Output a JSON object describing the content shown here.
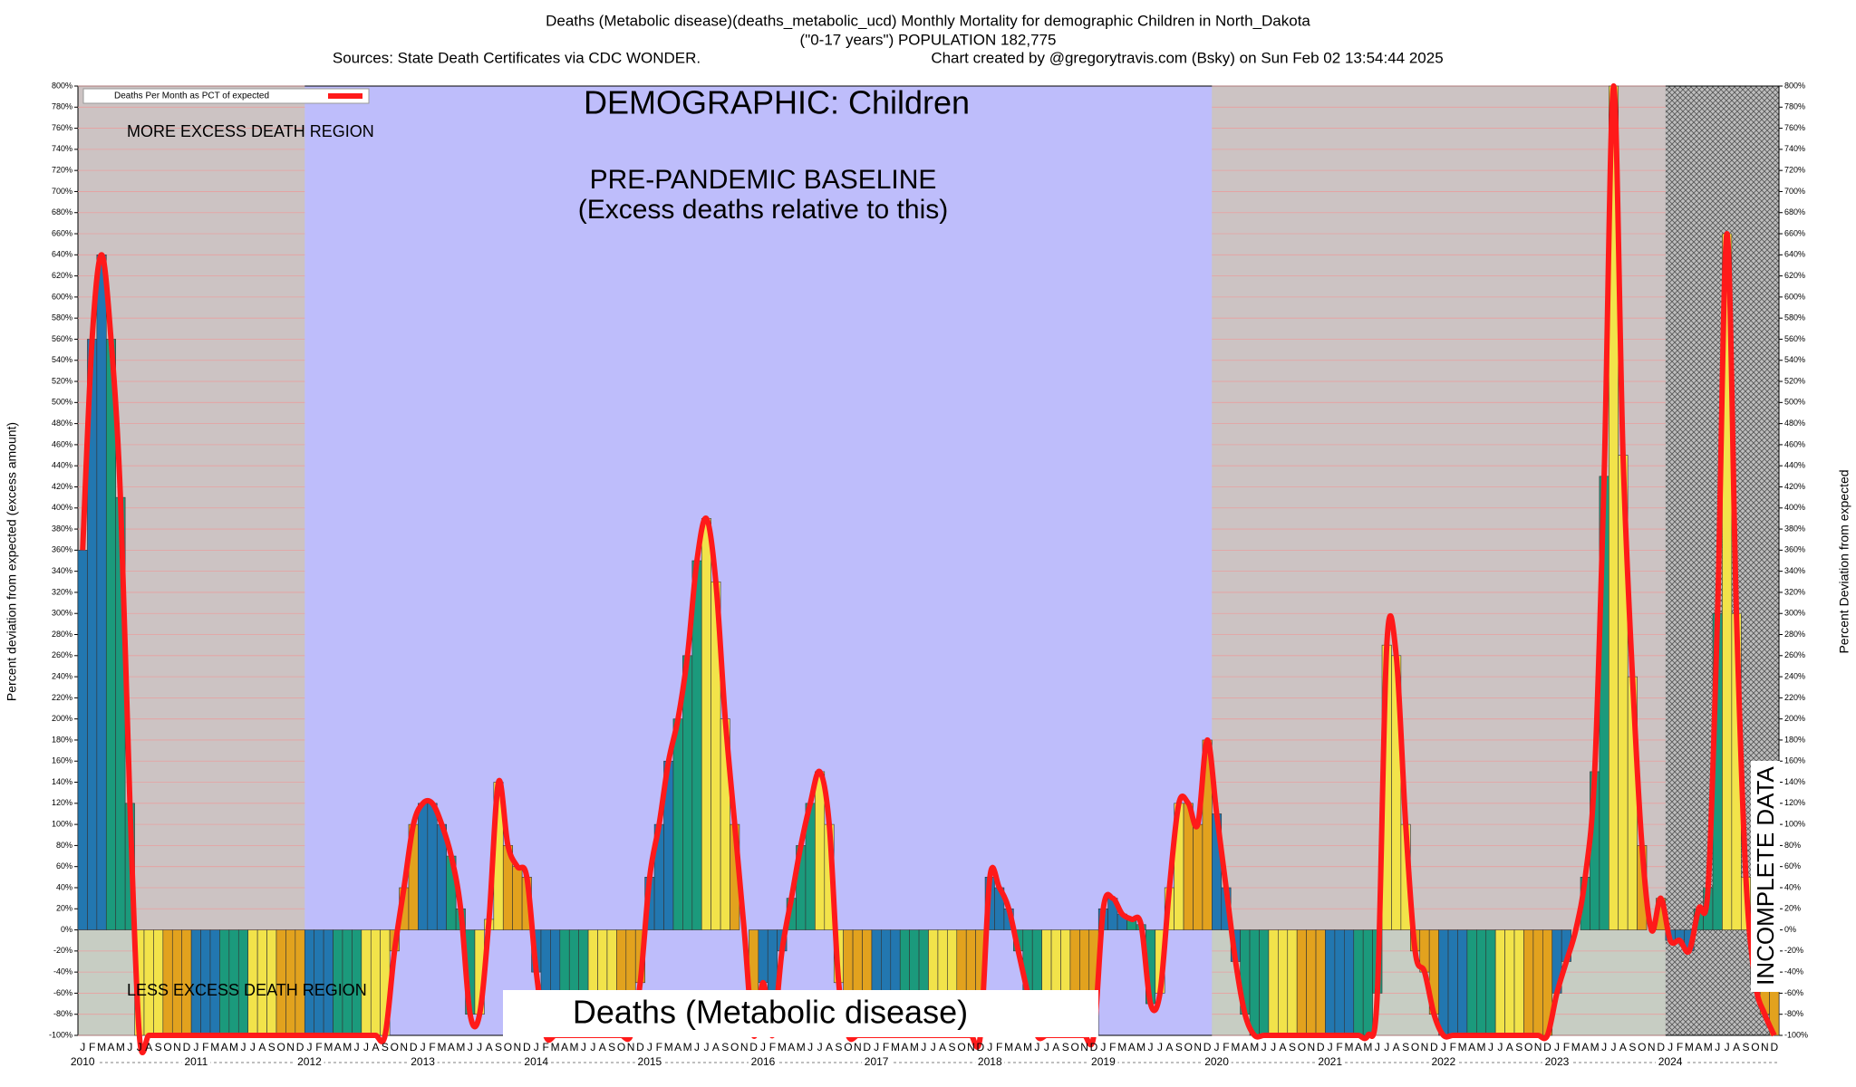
{
  "chart_data": {
    "type": "bar",
    "title": "Deaths (Metabolic disease)(deaths_metabolic_ucd) Monthly Mortality for demographic Children in North_Dakota",
    "subtitle": "(\"0-17 years\") POPULATION 182,775",
    "source": "Sources: State Death Certificates via CDC WONDER.",
    "credit": "Chart created by @gregorytravis.com (Bsky) on Sun Feb 02 13:54:44 2025",
    "annotations": {
      "demographic": "DEMOGRAPHIC: Children",
      "baseline": "PRE-PANDEMIC BASELINE",
      "baseline_note": "(Excess deaths relative to this)",
      "more": "MORE EXCESS DEATH REGION",
      "less": "LESS EXCESS DEATH REGION",
      "cause": "Deaths (Metabolic disease)",
      "incomplete": "INCOMPLETE DATA"
    },
    "ylabel": "Percent deviation from expected (excess amount)",
    "y2label": "Percent Deviation from expected",
    "months": [
      "J",
      "F",
      "M",
      "A",
      "M",
      "J",
      "J",
      "A",
      "S",
      "O",
      "N",
      "D"
    ],
    "years": [
      "2010",
      "2011",
      "2012",
      "2013",
      "2014",
      "2015",
      "2016",
      "2017",
      "2018",
      "2019",
      "2020",
      "2021",
      "2022",
      "2023",
      "2024"
    ],
    "quarter_colors": [
      "#2277b0",
      "#1b9a7c",
      "#f2e34a",
      "#e2a21e"
    ],
    "series": [
      {
        "name": "Deaths Per Month as PCT of expected",
        "color": "#ff1a1a",
        "values": [
          360,
          560,
          640,
          560,
          410,
          120,
          -100,
          -100,
          -100,
          -100,
          -100,
          -100,
          -100,
          -100,
          -100,
          -100,
          -100,
          -100,
          -100,
          -100,
          -100,
          -100,
          -100,
          -100,
          -100,
          -100,
          -100,
          -100,
          -100,
          -100,
          -100,
          -100,
          -100,
          -20,
          40,
          100,
          120,
          120,
          100,
          70,
          20,
          -80,
          -80,
          10,
          140,
          80,
          60,
          50,
          -40,
          -100,
          -100,
          -100,
          -100,
          -100,
          -100,
          -100,
          -100,
          -100,
          -100,
          -50,
          50,
          100,
          160,
          200,
          260,
          350,
          390,
          330,
          200,
          100,
          0,
          -100,
          -50,
          -100,
          -20,
          30,
          80,
          120,
          150,
          100,
          -50,
          -100,
          -100,
          -100,
          -100,
          -100,
          -100,
          -100,
          -100,
          -100,
          -100,
          -100,
          -100,
          -100,
          -100,
          -100,
          50,
          40,
          20,
          -20,
          -60,
          -100,
          -100,
          -100,
          -100,
          -100,
          -100,
          -100,
          20,
          30,
          15,
          10,
          5,
          -70,
          -60,
          40,
          120,
          120,
          100,
          180,
          110,
          40,
          -30,
          -80,
          -100,
          -100,
          -100,
          -100,
          -100,
          -100,
          -100,
          -100,
          -100,
          -100,
          -100,
          -100,
          -100,
          -60,
          270,
          260,
          100,
          -20,
          -40,
          -80,
          -100,
          -100,
          -100,
          -100,
          -100,
          -100,
          -100,
          -100,
          -100,
          -100,
          -100,
          -100,
          -60,
          -30,
          0,
          50,
          150,
          430,
          800,
          450,
          240,
          80,
          0,
          30,
          -10,
          -10,
          -20,
          20,
          40,
          300,
          660,
          300,
          50,
          -50,
          -80,
          -100
        ]
      }
    ],
    "ylim": [
      -100,
      800
    ],
    "yticks": [
      {
        "value": -100,
        "label": "-100%"
      },
      {
        "value": -80,
        "label": "-80%"
      },
      {
        "value": -60,
        "label": "-60%"
      },
      {
        "value": -40,
        "label": "-40%"
      },
      {
        "value": -20,
        "label": "-20%"
      },
      {
        "value": 0,
        "label": "0%"
      },
      {
        "value": 20,
        "label": "20%"
      },
      {
        "value": 40,
        "label": "40%"
      },
      {
        "value": 60,
        "label": "60%"
      },
      {
        "value": 80,
        "label": "80%"
      },
      {
        "value": 100,
        "label": "100%"
      },
      {
        "value": 120,
        "label": "120%"
      },
      {
        "value": 140,
        "label": "140%"
      },
      {
        "value": 160,
        "label": "160%"
      },
      {
        "value": 180,
        "label": "180%"
      },
      {
        "value": 200,
        "label": "200%"
      },
      {
        "value": 220,
        "label": "220%"
      },
      {
        "value": 240,
        "label": "240%"
      },
      {
        "value": 260,
        "label": "260%"
      },
      {
        "value": 280,
        "label": "280%"
      },
      {
        "value": 300,
        "label": "300%"
      },
      {
        "value": 320,
        "label": "320%"
      },
      {
        "value": 340,
        "label": "340%"
      },
      {
        "value": 360,
        "label": "360%"
      },
      {
        "value": 380,
        "label": "380%"
      },
      {
        "value": 400,
        "label": "400%"
      },
      {
        "value": 420,
        "label": "420%"
      },
      {
        "value": 440,
        "label": "440%"
      },
      {
        "value": 460,
        "label": "460%"
      },
      {
        "value": 480,
        "label": "480%"
      },
      {
        "value": 500,
        "label": "500%"
      },
      {
        "value": 520,
        "label": "520%"
      },
      {
        "value": 540,
        "label": "540%"
      },
      {
        "value": 560,
        "label": "560%"
      },
      {
        "value": 580,
        "label": "580%"
      },
      {
        "value": 600,
        "label": "600%"
      },
      {
        "value": 620,
        "label": "620%"
      },
      {
        "value": 640,
        "label": "640%"
      },
      {
        "value": 660,
        "label": "660%"
      },
      {
        "value": 680,
        "label": "680%"
      },
      {
        "value": 700,
        "label": "700%"
      },
      {
        "value": 720,
        "label": "720%"
      },
      {
        "value": 740,
        "label": "740%"
      },
      {
        "value": 760,
        "label": "760%"
      },
      {
        "value": 780,
        "label": "780%"
      },
      {
        "value": 800,
        "label": "800%"
      }
    ],
    "grid": true
  }
}
